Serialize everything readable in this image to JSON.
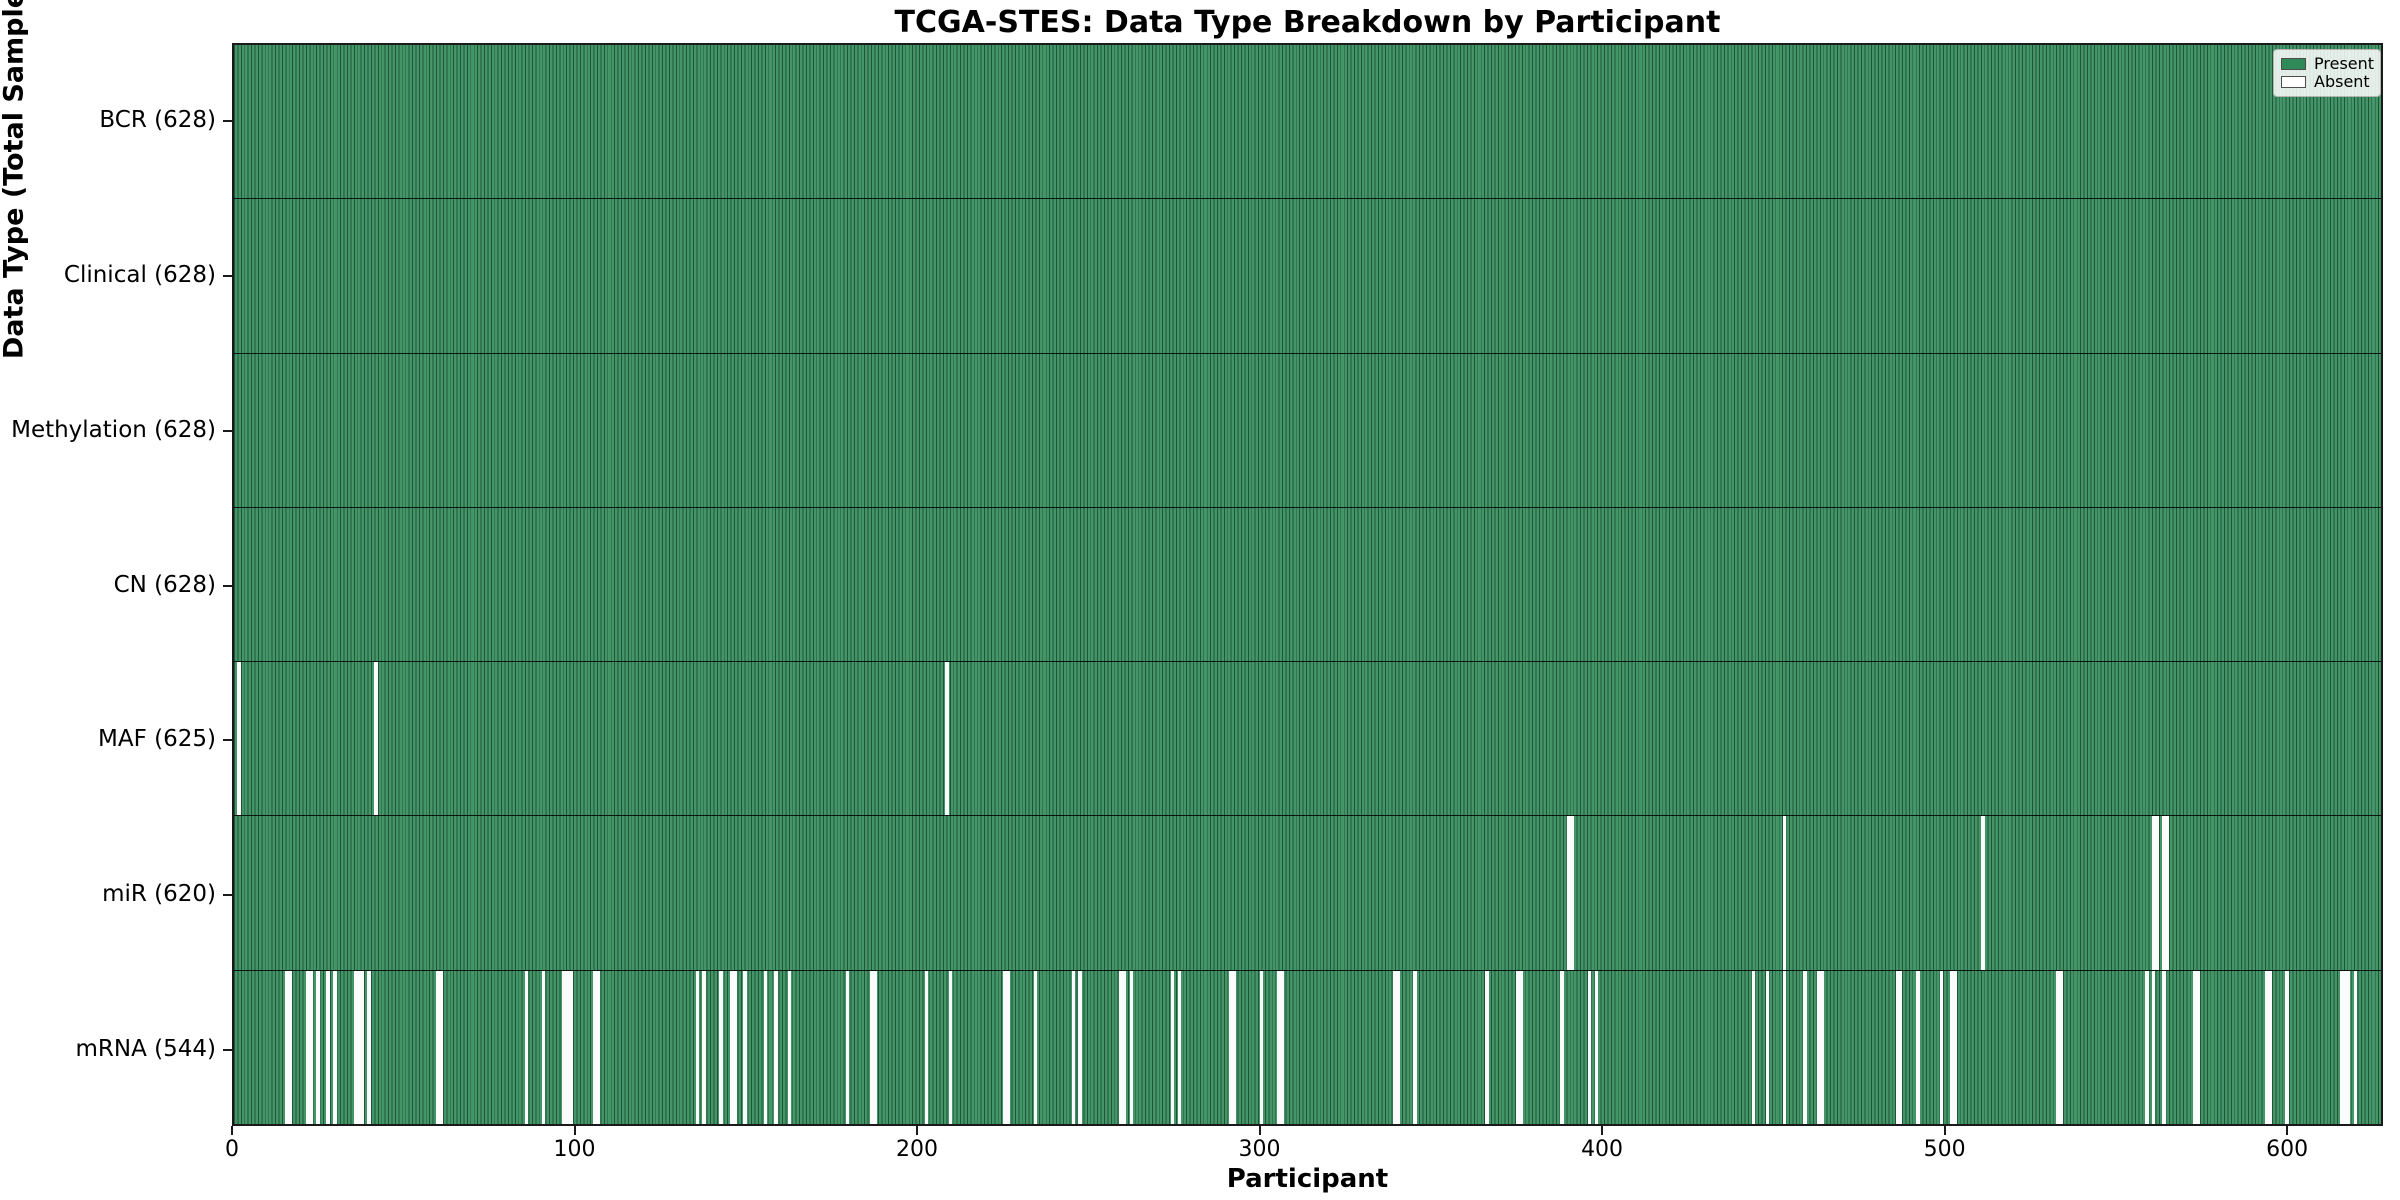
{
  "chart_data": {
    "type": "heatmap",
    "title": "TCGA-STES: Data Type Breakdown by Participant",
    "xlabel": "Participant",
    "ylabel": "Data Type (Total Sample Count)",
    "x_ticks": [
      0,
      100,
      200,
      300,
      400,
      500,
      600
    ],
    "x_range": [
      0,
      628
    ],
    "total_participants": 628,
    "grid": false,
    "legend_position": "upper right",
    "legend": [
      {
        "label": "Present",
        "color": "#2e8b57"
      },
      {
        "label": "Absent",
        "color": "#ffffff"
      }
    ],
    "rows": [
      {
        "label": "BCR",
        "count": 628,
        "tick_label": "BCR (628)",
        "absent_participants": []
      },
      {
        "label": "Clinical",
        "count": 628,
        "tick_label": "Clinical (628)",
        "absent_participants": []
      },
      {
        "label": "Methylation",
        "count": 628,
        "tick_label": "Methylation (628)",
        "absent_participants": []
      },
      {
        "label": "CN",
        "count": 628,
        "tick_label": "CN (628)",
        "absent_participants": []
      },
      {
        "label": "MAF",
        "count": 625,
        "tick_label": "MAF (625)",
        "absent_participants": [
          1,
          41,
          208
        ]
      },
      {
        "label": "miR",
        "count": 620,
        "tick_label": "miR (620)",
        "absent_participants": [
          390,
          391,
          453,
          511,
          561,
          562,
          564,
          565
        ]
      },
      {
        "label": "mRNA",
        "count": 544,
        "tick_label": "mRNA (544)",
        "absent_participants": [
          15,
          16,
          21,
          22,
          24,
          27,
          29,
          35,
          36,
          37,
          39,
          59,
          60,
          85,
          90,
          96,
          97,
          98,
          105,
          106,
          135,
          137,
          142,
          145,
          146,
          149,
          155,
          158,
          162,
          179,
          186,
          187,
          202,
          209,
          225,
          226,
          234,
          245,
          247,
          259,
          260,
          262,
          274,
          276,
          291,
          292,
          300,
          305,
          306,
          339,
          340,
          345,
          366,
          375,
          376,
          388,
          396,
          398,
          444,
          448,
          453,
          459,
          463,
          464,
          486,
          487,
          492,
          499,
          502,
          503,
          533,
          534,
          559,
          561,
          564,
          573,
          574,
          594,
          595,
          600,
          616,
          617,
          618,
          620
        ]
      }
    ],
    "colors": {
      "present_fill": "#2e8b57",
      "present_fill_light": "#449669",
      "bar_edge": "#1e5537",
      "absent_fill": "#fcfcfc",
      "spine": "#1a1a1a"
    }
  }
}
